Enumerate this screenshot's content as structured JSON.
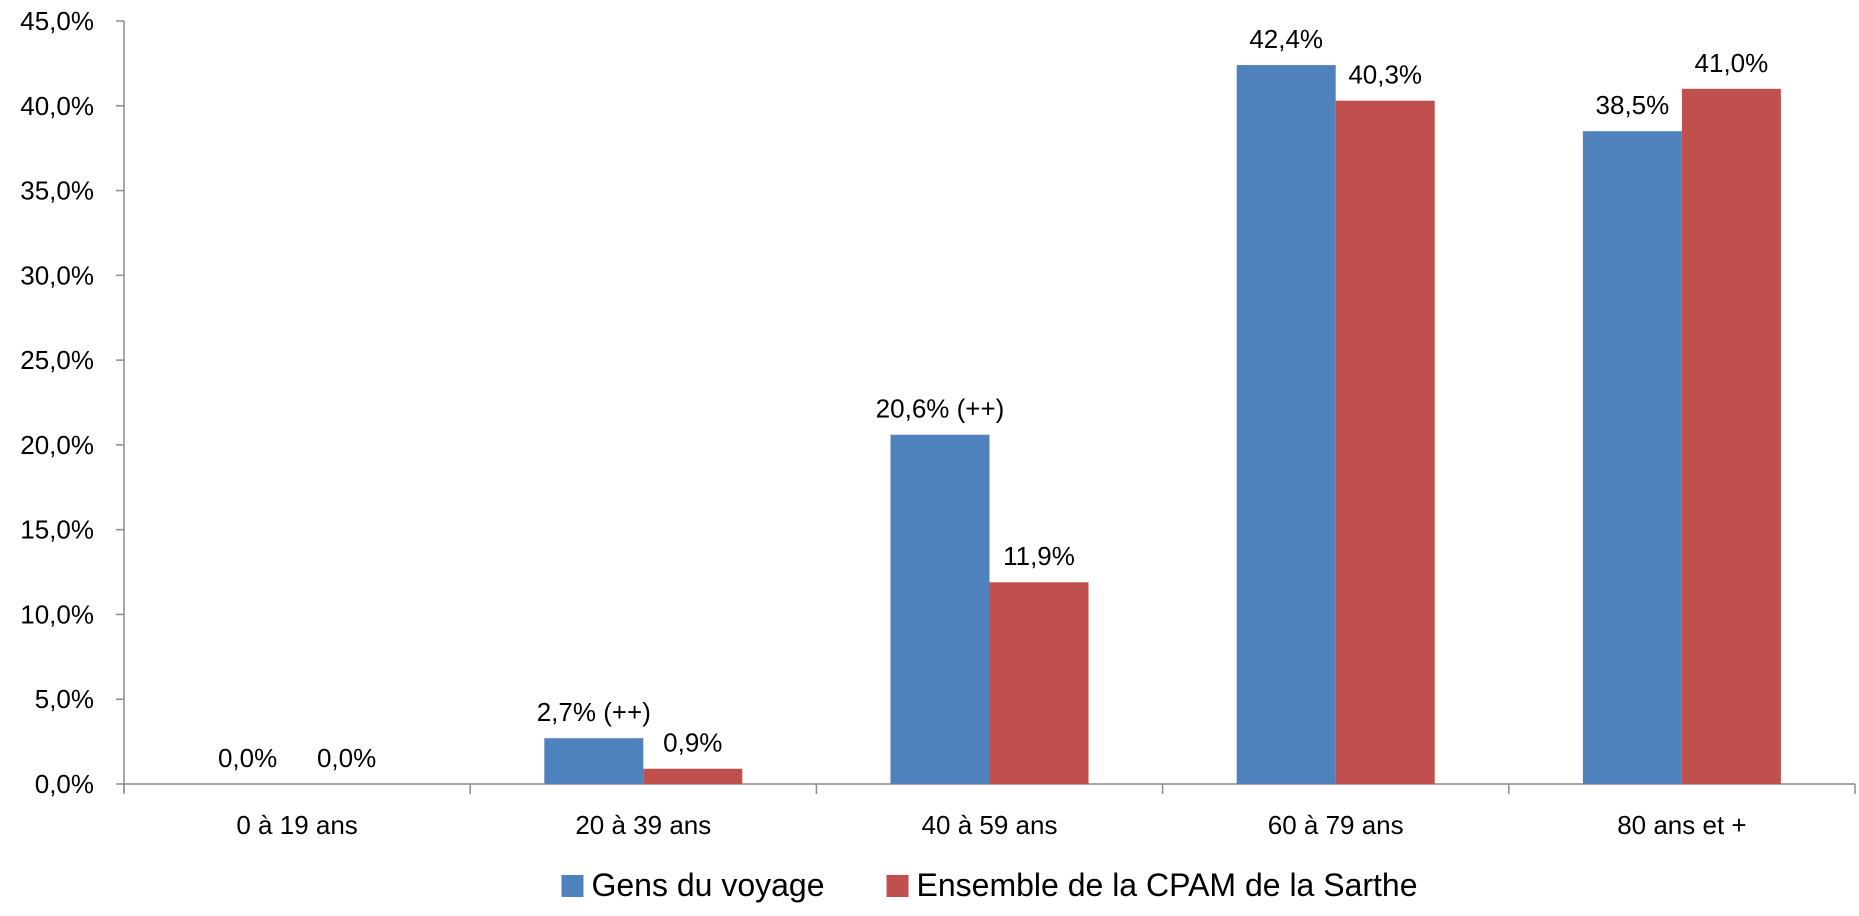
{
  "chart_data": {
    "type": "bar",
    "categories": [
      "0 à 19 ans",
      "20 à 39 ans",
      "40 à 59 ans",
      "60 à 79 ans",
      "80 ans et +"
    ],
    "series": [
      {
        "name": "Gens du voyage",
        "color": "#4F81BD",
        "values": [
          0.0,
          2.7,
          20.6,
          42.4,
          38.5
        ],
        "labels": [
          "0,0%",
          "2,7% (++)",
          "20,6% (++)",
          "42,4%",
          "38,5%"
        ]
      },
      {
        "name": "Ensemble de la CPAM de la Sarthe",
        "color": "#C0504D",
        "values": [
          0.0,
          0.9,
          11.9,
          40.3,
          41.0
        ],
        "labels": [
          "0,0%",
          "0,9%",
          "11,9%",
          "40,3%",
          "41,0%"
        ]
      }
    ],
    "y_ticks": [
      0,
      5,
      10,
      15,
      20,
      25,
      30,
      35,
      40,
      45
    ],
    "y_tick_labels": [
      "0,0%",
      "5,0%",
      "10,0%",
      "15,0%",
      "20,0%",
      "25,0%",
      "30,0%",
      "35,0%",
      "40,0%",
      "45,0%"
    ],
    "ylim": [
      0,
      45
    ],
    "grid": false,
    "legend_position": "bottom-center"
  }
}
